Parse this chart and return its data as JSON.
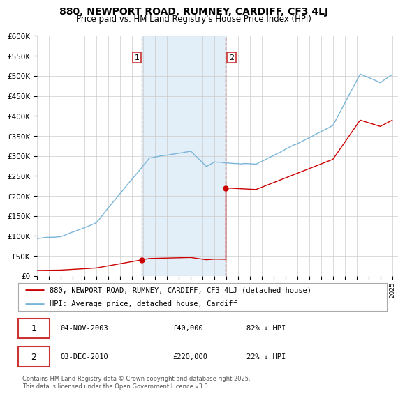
{
  "title": "880, NEWPORT ROAD, RUMNEY, CARDIFF, CF3 4LJ",
  "subtitle": "Price paid vs. HM Land Registry's House Price Index (HPI)",
  "title_fontsize": 10,
  "subtitle_fontsize": 8.5,
  "background_color": "#ffffff",
  "plot_bg_color": "#ffffff",
  "grid_color": "#cccccc",
  "sale1_price": 40000,
  "sale2_price": 220000,
  "sale1_year": 2003.833,
  "sale2_year": 2010.917,
  "legend1": "880, NEWPORT ROAD, RUMNEY, CARDIFF, CF3 4LJ (detached house)",
  "legend2": "HPI: Average price, detached house, Cardiff",
  "note1_date": "04-NOV-2003",
  "note1_price": "£40,000",
  "note1_hpi": "82% ↓ HPI",
  "note2_date": "03-DEC-2010",
  "note2_price": "£220,000",
  "note2_hpi": "22% ↓ HPI",
  "copyright": "Contains HM Land Registry data © Crown copyright and database right 2025.\nThis data is licensed under the Open Government Licence v3.0.",
  "hpi_color": "#7ab5d9",
  "price_color": "#cc0000",
  "shade_color": "#dbeaf7",
  "ylim": [
    0,
    600000
  ],
  "yticks": [
    0,
    50000,
    100000,
    150000,
    200000,
    250000,
    300000,
    350000,
    400000,
    450000,
    500000,
    550000,
    600000
  ],
  "xlim_start": 1995,
  "xlim_end": 2025.5
}
